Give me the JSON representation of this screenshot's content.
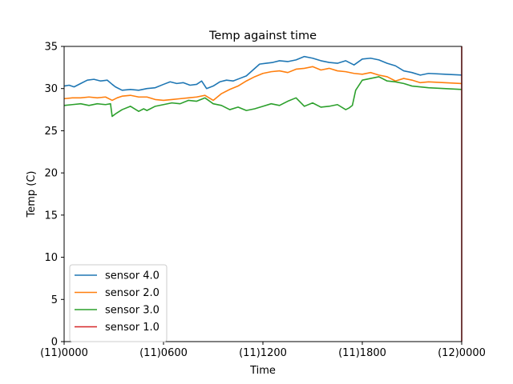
{
  "chart_data": {
    "type": "line",
    "title": "Temp against  time",
    "xlabel": "Time",
    "ylabel": "Temp (C)",
    "xlim": [
      0,
      24
    ],
    "ylim": [
      0,
      35
    ],
    "x_ticks": [
      {
        "value": 0,
        "label": "(11)0000"
      },
      {
        "value": 6,
        "label": "(11)0600"
      },
      {
        "value": 12,
        "label": "(11)1200"
      },
      {
        "value": 18,
        "label": "(11)1800"
      },
      {
        "value": 24,
        "label": "(12)0000"
      }
    ],
    "y_ticks": [
      0,
      5,
      10,
      15,
      20,
      25,
      30,
      35
    ],
    "grid": false,
    "legend_position": "lower-left",
    "series": [
      {
        "name": "sensor 4.0",
        "color": "#1f77b4",
        "x": [
          0,
          0.3,
          0.6,
          1.0,
          1.4,
          1.8,
          2.2,
          2.6,
          2.9,
          3.1,
          3.5,
          4.0,
          4.5,
          5.0,
          5.5,
          6.0,
          6.4,
          6.8,
          7.2,
          7.6,
          8.0,
          8.3,
          8.6,
          9.0,
          9.4,
          9.8,
          10.2,
          10.6,
          11.0,
          11.4,
          11.8,
          12.2,
          12.6,
          13.0,
          13.5,
          14.0,
          14.5,
          15.0,
          15.5,
          16.0,
          16.5,
          17.0,
          17.5,
          18.0,
          18.5,
          19.0,
          19.5,
          20.0,
          20.5,
          21.0,
          21.5,
          22.0,
          23.0,
          24.0
        ],
        "y": [
          30.3,
          30.4,
          30.2,
          30.6,
          31.0,
          31.1,
          30.9,
          31.0,
          30.5,
          30.2,
          29.8,
          29.9,
          29.8,
          30.0,
          30.1,
          30.5,
          30.8,
          30.6,
          30.7,
          30.4,
          30.5,
          30.9,
          30.0,
          30.3,
          30.8,
          31.0,
          30.9,
          31.2,
          31.5,
          32.2,
          32.9,
          33.0,
          33.1,
          33.3,
          33.2,
          33.4,
          33.8,
          33.6,
          33.3,
          33.1,
          33.0,
          33.3,
          32.8,
          33.5,
          33.6,
          33.4,
          33.0,
          32.7,
          32.1,
          31.9,
          31.6,
          31.8,
          31.7,
          31.6
        ]
      },
      {
        "name": "sensor 2.0",
        "color": "#ff7f0e",
        "x": [
          0,
          0.5,
          1.0,
          1.5,
          2.0,
          2.5,
          2.9,
          3.2,
          3.5,
          4.0,
          4.5,
          5.0,
          5.5,
          6.0,
          6.5,
          7.0,
          7.5,
          8.0,
          8.5,
          9.0,
          9.5,
          10.0,
          10.5,
          11.0,
          11.5,
          12.0,
          12.5,
          13.0,
          13.5,
          14.0,
          14.5,
          15.0,
          15.5,
          16.0,
          16.5,
          17.0,
          17.5,
          18.0,
          18.5,
          19.0,
          19.5,
          20.0,
          20.5,
          21.0,
          21.5,
          22.0,
          24.0
        ],
        "y": [
          28.8,
          28.9,
          28.9,
          29.0,
          28.9,
          29.0,
          28.6,
          28.9,
          29.1,
          29.2,
          29.0,
          29.0,
          28.7,
          28.6,
          28.7,
          28.8,
          28.9,
          29.0,
          29.2,
          28.6,
          29.4,
          29.9,
          30.3,
          30.9,
          31.4,
          31.8,
          32.0,
          32.1,
          31.9,
          32.3,
          32.4,
          32.6,
          32.2,
          32.4,
          32.1,
          32.0,
          31.8,
          31.7,
          31.9,
          31.6,
          31.4,
          30.9,
          31.2,
          31.0,
          30.7,
          30.8,
          30.6
        ]
      },
      {
        "name": "sensor 3.0",
        "color": "#2ca02c",
        "x": [
          0,
          0.5,
          1.0,
          1.5,
          2.0,
          2.5,
          2.8,
          2.9,
          3.1,
          3.5,
          4.0,
          4.5,
          4.8,
          5.0,
          5.5,
          6.0,
          6.5,
          7.0,
          7.5,
          8.0,
          8.5,
          9.0,
          9.5,
          10.0,
          10.5,
          11.0,
          11.5,
          12.0,
          12.5,
          13.0,
          13.5,
          14.0,
          14.5,
          15.0,
          15.5,
          16.0,
          16.5,
          17.0,
          17.2,
          17.4,
          17.6,
          18.0,
          18.5,
          19.0,
          19.5,
          20.0,
          20.5,
          21.0,
          22.0,
          24.0
        ],
        "y": [
          28.0,
          28.1,
          28.2,
          28.0,
          28.2,
          28.1,
          28.2,
          26.7,
          27.0,
          27.5,
          27.9,
          27.3,
          27.6,
          27.4,
          27.9,
          28.1,
          28.3,
          28.2,
          28.6,
          28.5,
          28.9,
          28.2,
          28.0,
          27.5,
          27.8,
          27.4,
          27.6,
          27.9,
          28.2,
          28.0,
          28.5,
          28.9,
          27.9,
          28.3,
          27.8,
          27.9,
          28.1,
          27.5,
          27.7,
          28.0,
          29.8,
          31.0,
          31.2,
          31.4,
          30.9,
          30.8,
          30.6,
          30.3,
          30.1,
          29.9
        ]
      },
      {
        "name": "sensor 1.0",
        "color": "#d62728",
        "x": [
          24,
          24
        ],
        "y": [
          0,
          35
        ]
      }
    ]
  }
}
